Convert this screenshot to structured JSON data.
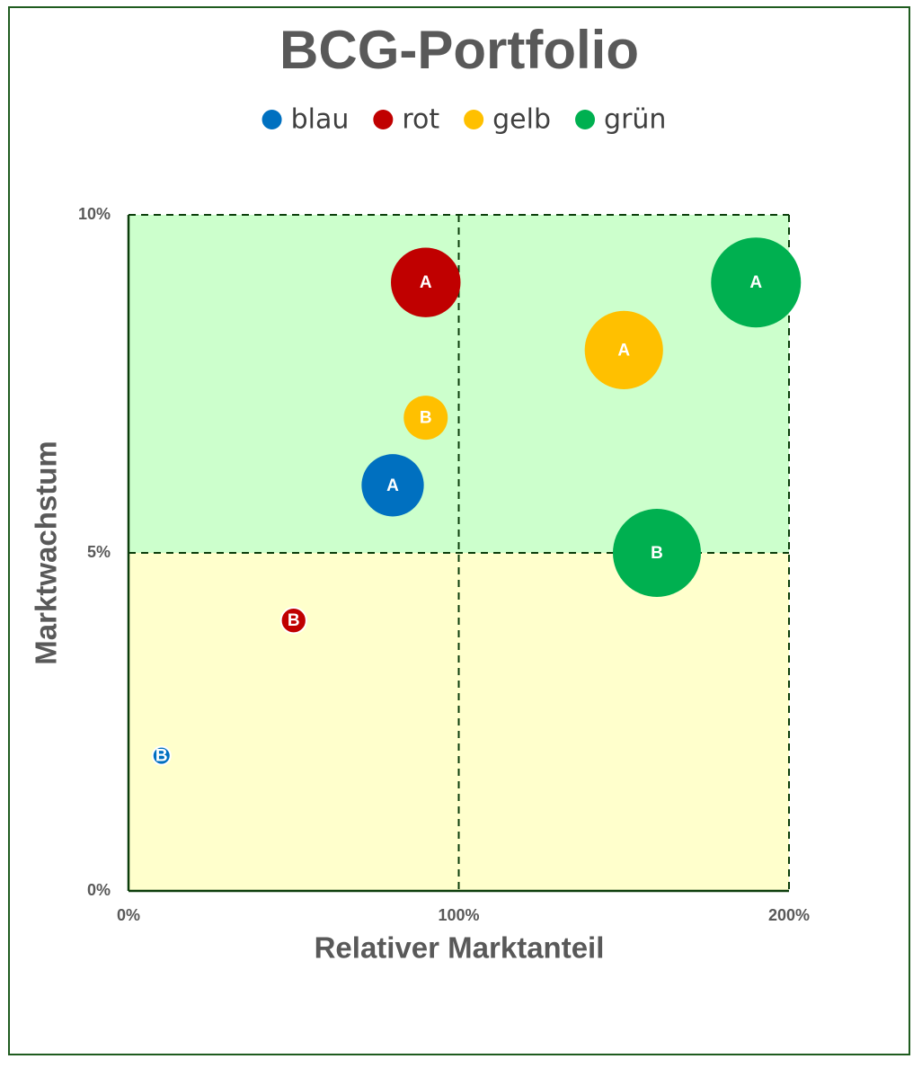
{
  "chart_data": {
    "type": "bubble",
    "title": "BCG-Portfolio",
    "x_label": "Relativer Marktanteil",
    "y_label": "Marktwachstum",
    "xlim": [
      0,
      200
    ],
    "xticks": [
      {
        "value": 0,
        "label": "0%"
      },
      {
        "value": 100,
        "label": "100%"
      },
      {
        "value": 200,
        "label": "200%"
      }
    ],
    "ylim": [
      0,
      10
    ],
    "yticks": [
      {
        "value": 0,
        "label": "0%"
      },
      {
        "value": 5,
        "label": "5%"
      },
      {
        "value": 10,
        "label": "10%"
      }
    ],
    "grid": true,
    "legend": "top",
    "series": [
      {
        "name": "blau",
        "color": "#0070c0",
        "x": [
          80,
          10
        ],
        "values": [
          6,
          2
        ],
        "sizes": [
          12,
          1
        ],
        "labels": [
          "A",
          "B"
        ]
      },
      {
        "name": "rot",
        "color": "#c00000",
        "x": [
          90,
          50
        ],
        "values": [
          9,
          4
        ],
        "sizes": [
          15,
          2
        ],
        "labels": [
          "A",
          "B"
        ]
      },
      {
        "name": "gelb",
        "color": "#ffc000",
        "x": [
          150,
          90
        ],
        "values": [
          8,
          7
        ],
        "sizes": [
          19,
          6
        ],
        "labels": [
          "A",
          "B"
        ]
      },
      {
        "name": "grün",
        "color": "#00b050",
        "x": [
          190,
          160
        ],
        "values": [
          9,
          5
        ],
        "sizes": [
          25,
          24
        ],
        "labels": [
          "A",
          "B"
        ]
      }
    ]
  }
}
